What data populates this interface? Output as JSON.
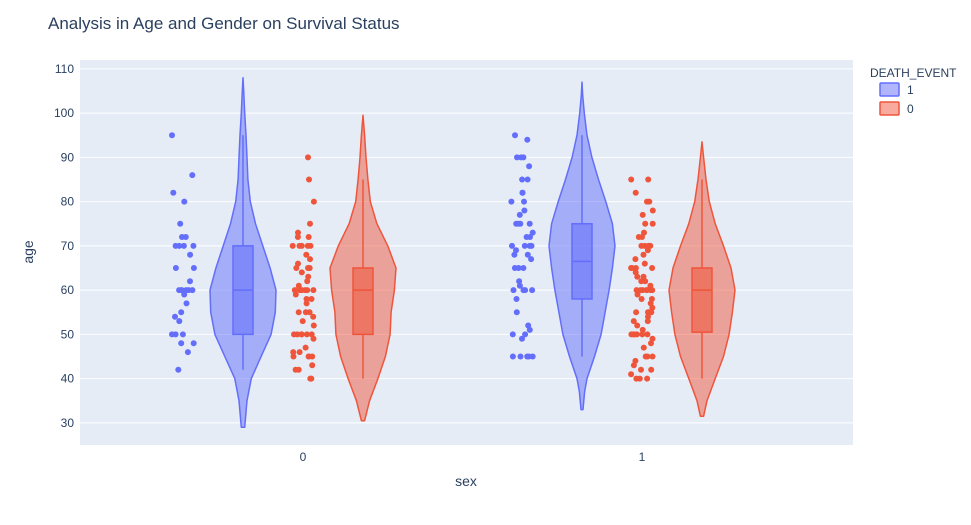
{
  "chart_data": {
    "type": "violin",
    "title": "Analysis in Age and Gender on Survival Status",
    "xlabel": "sex",
    "ylabel": "age",
    "categories": [
      "0",
      "1"
    ],
    "ylim": [
      25,
      112
    ],
    "yticks": [
      30,
      40,
      50,
      60,
      70,
      80,
      90,
      100,
      110
    ],
    "grid": true,
    "legend": {
      "title": "DEATH_EVENT",
      "placement": "top-right"
    },
    "series": [
      {
        "name": "1",
        "color": "#636efa",
        "groups": [
          {
            "category": "0",
            "box": {
              "q1": 50,
              "median": 60,
              "q3": 70,
              "whisker_low": 42,
              "whisker_high": 95
            },
            "range": [
              29,
              108
            ],
            "points": [
              95,
              86,
              82,
              80,
              75,
              72,
              72,
              70,
              70,
              70,
              70,
              68,
              65,
              65,
              62,
              60,
              60,
              60,
              60,
              60,
              60,
              59,
              57,
              55,
              54,
              53,
              50,
              50,
              50,
              48,
              48,
              46,
              42
            ],
            "density": [
              [
                29,
                0.05
              ],
              [
                35,
                0.12
              ],
              [
                40,
                0.25
              ],
              [
                45,
                0.55
              ],
              [
                50,
                0.85
              ],
              [
                55,
                0.98
              ],
              [
                60,
                1.0
              ],
              [
                65,
                0.82
              ],
              [
                70,
                0.6
              ],
              [
                75,
                0.38
              ],
              [
                80,
                0.22
              ],
              [
                85,
                0.15
              ],
              [
                90,
                0.12
              ],
              [
                95,
                0.09
              ],
              [
                100,
                0.05
              ],
              [
                105,
                0.02
              ],
              [
                108,
                0.0
              ]
            ]
          },
          {
            "category": "1",
            "box": {
              "q1": 58,
              "median": 66.5,
              "q3": 75,
              "whisker_low": 45,
              "whisker_high": 95
            },
            "range": [
              33,
              107
            ],
            "points": [
              95,
              94,
              90,
              90,
              90,
              88,
              85,
              85,
              82,
              82,
              80,
              80,
              78,
              77,
              75,
              75,
              75,
              75,
              73,
              72,
              72,
              70,
              70,
              70,
              70,
              69,
              68,
              68,
              67,
              65,
              65,
              65,
              62,
              61,
              60,
              60,
              60,
              60,
              58,
              55,
              52,
              51,
              50,
              50,
              49,
              45,
              45,
              45,
              45,
              45
            ],
            "density": [
              [
                33,
                0.03
              ],
              [
                37,
                0.08
              ],
              [
                40,
                0.15
              ],
              [
                45,
                0.38
              ],
              [
                50,
                0.58
              ],
              [
                55,
                0.7
              ],
              [
                60,
                0.82
              ],
              [
                65,
                0.92
              ],
              [
                70,
                1.0
              ],
              [
                75,
                0.92
              ],
              [
                80,
                0.72
              ],
              [
                85,
                0.5
              ],
              [
                90,
                0.3
              ],
              [
                95,
                0.15
              ],
              [
                100,
                0.07
              ],
              [
                104,
                0.02
              ],
              [
                107,
                0.0
              ]
            ]
          }
        ]
      },
      {
        "name": "0",
        "color": "#ef553b",
        "groups": [
          {
            "category": "0",
            "box": {
              "q1": 50,
              "median": 60,
              "q3": 65,
              "whisker_low": 40,
              "whisker_high": 85
            },
            "range": [
              30.5,
              99.5
            ],
            "points": [
              90,
              85,
              80,
              75,
              73,
              72,
              72,
              70,
              70,
              70,
              70,
              70,
              68,
              67,
              66,
              65,
              65,
              65,
              65,
              64,
              63,
              62,
              61,
              60,
              60,
              60,
              60,
              60,
              60,
              59,
              58,
              58,
              57,
              55,
              55,
              55,
              54,
              53,
              52,
              50,
              50,
              50,
              50,
              50,
              50,
              49,
              47,
              46,
              46,
              45,
              45,
              45,
              45,
              43,
              42,
              42,
              40,
              40
            ],
            "density": [
              [
                30.5,
                0.05
              ],
              [
                35,
                0.2
              ],
              [
                40,
                0.45
              ],
              [
                45,
                0.68
              ],
              [
                50,
                0.82
              ],
              [
                55,
                0.85
              ],
              [
                60,
                0.95
              ],
              [
                65,
                1.0
              ],
              [
                70,
                0.75
              ],
              [
                75,
                0.42
              ],
              [
                80,
                0.22
              ],
              [
                85,
                0.15
              ],
              [
                90,
                0.09
              ],
              [
                95,
                0.05
              ],
              [
                99.5,
                0.0
              ]
            ]
          },
          {
            "category": "1",
            "box": {
              "q1": 50.5,
              "median": 60,
              "q3": 65,
              "whisker_low": 40,
              "whisker_high": 85
            },
            "range": [
              31.5,
              93.5
            ],
            "points": [
              85,
              85,
              82,
              80,
              80,
              78,
              77,
              75,
              75,
              73,
              72,
              72,
              70,
              70,
              70,
              70,
              70,
              70,
              69,
              68,
              67,
              66,
              65,
              65,
              65,
              65,
              64,
              63,
              63,
              62,
              62,
              61,
              60,
              60,
              60,
              60,
              60,
              60,
              60,
              59,
              58,
              58,
              57,
              56,
              55,
              55,
              55,
              55,
              54,
              53,
              53,
              52,
              51,
              50,
              50,
              50,
              50,
              50,
              50,
              49,
              48,
              47,
              45,
              45,
              45,
              44,
              43,
              42,
              42,
              41,
              40,
              40,
              40
            ],
            "density": [
              [
                31.5,
                0.05
              ],
              [
                35,
                0.15
              ],
              [
                40,
                0.4
              ],
              [
                45,
                0.65
              ],
              [
                50,
                0.82
              ],
              [
                55,
                0.92
              ],
              [
                60,
                1.0
              ],
              [
                65,
                0.88
              ],
              [
                70,
                0.65
              ],
              [
                75,
                0.4
              ],
              [
                80,
                0.22
              ],
              [
                85,
                0.12
              ],
              [
                90,
                0.05
              ],
              [
                93.5,
                0.0
              ]
            ]
          }
        ]
      }
    ]
  }
}
